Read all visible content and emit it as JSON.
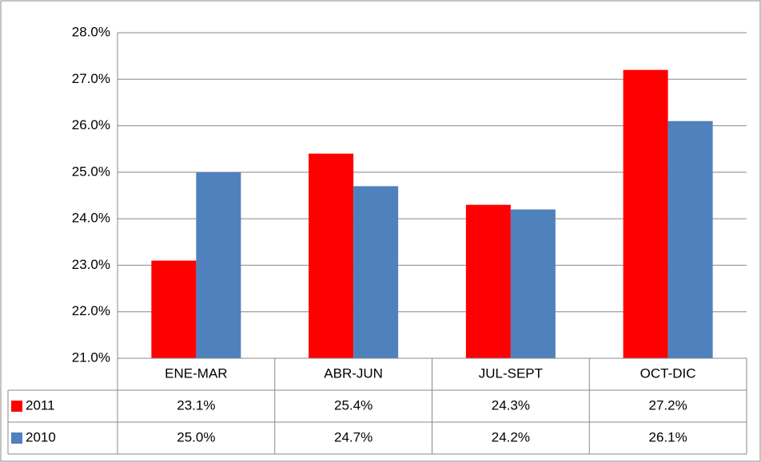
{
  "chart_data": {
    "type": "bar",
    "categories": [
      "ENE-MAR",
      "ABR-JUN",
      "JUL-SEPT",
      "OCT-DIC"
    ],
    "series": [
      {
        "name": "2011",
        "color": "#ff0000",
        "values": [
          23.1,
          25.4,
          24.3,
          27.2
        ],
        "value_labels": [
          "23.1%",
          "25.4%",
          "24.3%",
          "27.2%"
        ]
      },
      {
        "name": "2010",
        "color": "#4f81bd",
        "values": [
          25.0,
          24.7,
          24.2,
          26.1
        ],
        "value_labels": [
          "25.0%",
          "24.7%",
          "24.2%",
          "26.1%"
        ]
      }
    ],
    "ylim": [
      21,
      28
    ],
    "yticks": [
      {
        "value": 21,
        "label": "21.0%"
      },
      {
        "value": 22,
        "label": "22.0%"
      },
      {
        "value": 23,
        "label": "23.0%"
      },
      {
        "value": 24,
        "label": "24.0%"
      },
      {
        "value": 25,
        "label": "25.0%"
      },
      {
        "value": 26,
        "label": "26.0%"
      },
      {
        "value": 27,
        "label": "27.0%"
      },
      {
        "value": 28,
        "label": "28.0%"
      }
    ],
    "grid": true
  }
}
